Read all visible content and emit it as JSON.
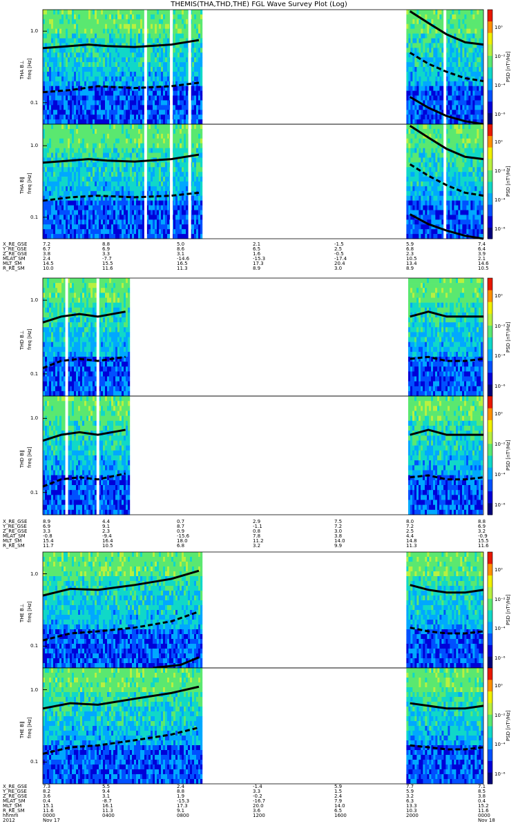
{
  "title": "THEMIS(THA,THD,THE) FGL Wave Survey Plot (Log)",
  "freq_label": "freq [Hz]",
  "psd_label": "PSD [nT²/Hz]",
  "colorbar_ticks": [
    "10⁰",
    "10⁻²",
    "10⁻⁴",
    "10⁻⁶"
  ],
  "colors": {
    "low": "#0033ff",
    "mid": "#22c8a0",
    "high": "#e8e000",
    "peak": "#d42000",
    "gap": "#ffffff"
  },
  "chart_data": [
    {
      "type": "heatmap",
      "panel": "THA B⊥",
      "ylabel": "THA B⊥",
      "yscale": "log",
      "ylim": [
        0.05,
        2.0
      ],
      "ytick_labels": [
        "1.0",
        "0.1"
      ],
      "xlim": [
        0,
        24
      ],
      "data_segments_hours": [
        [
          0,
          8.7
        ],
        [
          19.8,
          24
        ]
      ],
      "gaps_hours": [
        5.6,
        7.0,
        8.0,
        21.9
      ],
      "lines": [
        {
          "style": "solid",
          "x": [
            0,
            1.5,
            2.5,
            3.5,
            5,
            7,
            8.5
          ],
          "y": [
            0.58,
            0.62,
            0.65,
            0.62,
            0.6,
            0.65,
            0.75
          ]
        },
        {
          "style": "dashed",
          "x": [
            0,
            1.5,
            3,
            5,
            7,
            8.5
          ],
          "y": [
            0.14,
            0.15,
            0.17,
            0.16,
            0.17,
            0.19
          ]
        },
        {
          "style": "solid",
          "x": [
            20,
            21,
            22,
            23,
            24
          ],
          "y": [
            1.9,
            1.3,
            0.9,
            0.7,
            0.65
          ]
        },
        {
          "style": "dashed",
          "x": [
            20,
            21,
            22,
            23,
            24
          ],
          "y": [
            0.5,
            0.35,
            0.27,
            0.22,
            0.2
          ]
        },
        {
          "style": "solid",
          "x": [
            20,
            21,
            22,
            23,
            24
          ],
          "y": [
            0.12,
            0.085,
            0.065,
            0.055,
            0.05
          ]
        }
      ]
    },
    {
      "type": "heatmap",
      "panel": "THA B∥",
      "ylabel": "THA B∥",
      "yscale": "log",
      "ylim": [
        0.05,
        2.0
      ],
      "ytick_labels": [
        "1.0",
        "0.1"
      ],
      "xlim": [
        0,
        24
      ],
      "data_segments_hours": [
        [
          0,
          8.7
        ],
        [
          19.8,
          24
        ]
      ],
      "gaps_hours": [
        5.6,
        7.0,
        8.0,
        21.9
      ],
      "lines": [
        {
          "style": "solid",
          "x": [
            0,
            1.5,
            2.5,
            3.5,
            5,
            7,
            8.5
          ],
          "y": [
            0.58,
            0.62,
            0.65,
            0.62,
            0.6,
            0.65,
            0.75
          ]
        },
        {
          "style": "dashed",
          "x": [
            0,
            1.5,
            3,
            5,
            7,
            8.5
          ],
          "y": [
            0.17,
            0.19,
            0.2,
            0.19,
            0.2,
            0.22
          ]
        },
        {
          "style": "solid",
          "x": [
            20,
            21,
            22,
            23,
            24
          ],
          "y": [
            1.9,
            1.3,
            0.9,
            0.7,
            0.65
          ]
        },
        {
          "style": "dashed",
          "x": [
            20,
            21,
            22,
            23,
            24
          ],
          "y": [
            0.55,
            0.38,
            0.28,
            0.22,
            0.2
          ]
        },
        {
          "style": "solid",
          "x": [
            20,
            21,
            22,
            23,
            24
          ],
          "y": [
            0.11,
            0.08,
            0.065,
            0.055,
            0.05
          ]
        }
      ]
    },
    {
      "type": "heatmap",
      "panel": "THD B⊥",
      "ylabel": "THD B⊥",
      "yscale": "log",
      "ylim": [
        0.05,
        2.0
      ],
      "ytick_labels": [
        "1.0",
        "0.1"
      ],
      "xlim": [
        0,
        24
      ],
      "data_segments_hours": [
        [
          0,
          4.7
        ],
        [
          19.9,
          24
        ]
      ],
      "gaps_hours": [
        1.3,
        3.0
      ],
      "lines": [
        {
          "style": "solid",
          "x": [
            0,
            1,
            2,
            3,
            4.5
          ],
          "y": [
            0.5,
            0.6,
            0.65,
            0.6,
            0.7
          ]
        },
        {
          "style": "dashed",
          "x": [
            0,
            1,
            2,
            3,
            4.5
          ],
          "y": [
            0.12,
            0.15,
            0.16,
            0.15,
            0.17
          ]
        },
        {
          "style": "solid",
          "x": [
            20,
            21,
            22,
            23,
            24
          ],
          "y": [
            0.6,
            0.7,
            0.6,
            0.6,
            0.6
          ]
        },
        {
          "style": "dashed",
          "x": [
            20,
            21,
            22,
            23,
            24
          ],
          "y": [
            0.16,
            0.17,
            0.15,
            0.15,
            0.16
          ]
        }
      ]
    },
    {
      "type": "heatmap",
      "panel": "THD B∥",
      "ylabel": "THD B∥",
      "yscale": "log",
      "ylim": [
        0.05,
        2.0
      ],
      "ytick_labels": [
        "1.0",
        "0.1"
      ],
      "xlim": [
        0,
        24
      ],
      "data_segments_hours": [
        [
          0,
          4.7
        ],
        [
          19.9,
          24
        ]
      ],
      "gaps_hours": [
        1.3,
        3.0
      ],
      "lines": [
        {
          "style": "solid",
          "x": [
            0,
            1,
            2,
            3,
            4.5
          ],
          "y": [
            0.5,
            0.6,
            0.65,
            0.6,
            0.7
          ]
        },
        {
          "style": "dashed",
          "x": [
            0,
            1,
            2,
            3,
            4.5
          ],
          "y": [
            0.12,
            0.15,
            0.16,
            0.15,
            0.18
          ]
        },
        {
          "style": "solid",
          "x": [
            20,
            21,
            22,
            23,
            24
          ],
          "y": [
            0.6,
            0.7,
            0.6,
            0.6,
            0.6
          ]
        },
        {
          "style": "dashed",
          "x": [
            20,
            21,
            22,
            23,
            24
          ],
          "y": [
            0.16,
            0.17,
            0.15,
            0.15,
            0.16
          ]
        }
      ]
    },
    {
      "type": "heatmap",
      "panel": "THE B⊥",
      "ylabel": "THE B⊥",
      "yscale": "log",
      "ylim": [
        0.05,
        2.0
      ],
      "ytick_labels": [
        "1.0",
        "0.1"
      ],
      "xlim": [
        0,
        24
      ],
      "data_segments_hours": [
        [
          0,
          8.7
        ],
        [
          19.8,
          24
        ]
      ],
      "gaps_hours": [],
      "lines": [
        {
          "style": "solid",
          "x": [
            0,
            1.5,
            3,
            5,
            7,
            8.5
          ],
          "y": [
            0.5,
            0.62,
            0.6,
            0.7,
            0.85,
            1.1
          ]
        },
        {
          "style": "dashed",
          "x": [
            0,
            1.5,
            3,
            5,
            7,
            8.5
          ],
          "y": [
            0.12,
            0.15,
            0.16,
            0.18,
            0.22,
            0.3
          ]
        },
        {
          "style": "solid",
          "x": [
            6,
            7.5,
            8.5
          ],
          "y": [
            0.05,
            0.055,
            0.07
          ]
        },
        {
          "style": "solid",
          "x": [
            20,
            21,
            22,
            23,
            24
          ],
          "y": [
            0.7,
            0.6,
            0.55,
            0.55,
            0.6
          ]
        },
        {
          "style": "dashed",
          "x": [
            20,
            21,
            22,
            23,
            24
          ],
          "y": [
            0.18,
            0.16,
            0.15,
            0.15,
            0.16
          ]
        }
      ]
    },
    {
      "type": "heatmap",
      "panel": "THE B∥",
      "ylabel": "THE B∥",
      "yscale": "log",
      "ylim": [
        0.05,
        2.0
      ],
      "ytick_labels": [
        "1.0",
        "0.1"
      ],
      "xlim": [
        0,
        24
      ],
      "data_segments_hours": [
        [
          0,
          8.7
        ],
        [
          19.8,
          24
        ]
      ],
      "gaps_hours": [],
      "lines": [
        {
          "style": "solid",
          "x": [
            0,
            1.5,
            3,
            5,
            7,
            8.5
          ],
          "y": [
            0.55,
            0.65,
            0.62,
            0.75,
            0.9,
            1.1
          ]
        },
        {
          "style": "dashed",
          "x": [
            0,
            1.5,
            3,
            5,
            7,
            8.5
          ],
          "y": [
            0.13,
            0.16,
            0.17,
            0.2,
            0.24,
            0.3
          ]
        },
        {
          "style": "solid",
          "x": [
            20,
            21,
            22,
            23,
            24
          ],
          "y": [
            0.65,
            0.6,
            0.55,
            0.55,
            0.6
          ]
        },
        {
          "style": "dashed",
          "x": [
            20,
            21,
            22,
            23,
            24
          ],
          "y": [
            0.17,
            0.16,
            0.15,
            0.15,
            0.16
          ]
        }
      ]
    }
  ],
  "ephemeris": [
    {
      "rows": [
        {
          "label": "X_RE_GSE",
          "values": [
            "7.2",
            "8.8",
            "5.0",
            "2.1",
            "-1.5",
            "5.9",
            "7.4"
          ]
        },
        {
          "label": "Y_RE_GSE",
          "values": [
            "6.7",
            "6.9",
            "8.6",
            "6.5",
            "2.5",
            "6.8",
            "6.4"
          ]
        },
        {
          "label": "Z_RE_GSE",
          "values": [
            "3.8",
            "3.3",
            "3.1",
            "1.6",
            "-0.5",
            "2.3",
            "3.9"
          ]
        },
        {
          "label": "MLAT_SM",
          "values": [
            "2.4",
            "-7.7",
            "-14.6",
            "-15.3",
            "-17.4",
            "10.5",
            "2.1"
          ]
        },
        {
          "label": "MLT_SM",
          "values": [
            "14.5",
            "15.5",
            "16.5",
            "17.3",
            "20.4",
            "13.4",
            "14.6"
          ]
        },
        {
          "label": "R_RE_SM",
          "values": [
            "10.0",
            "11.6",
            "11.3",
            "8.9",
            "3.0",
            "8.9",
            "10.5"
          ]
        }
      ]
    },
    {
      "rows": [
        {
          "label": "X_RE_GSE",
          "values": [
            "8.9",
            "4.4",
            "0.7",
            "2.9",
            "7.5",
            "8.0",
            "8.8"
          ]
        },
        {
          "label": "Y_RE_GSE",
          "values": [
            "6.9",
            "9.1",
            "8.7",
            "-1.1",
            "7.2",
            "7.2",
            "6.9"
          ]
        },
        {
          "label": "Z_RE_GSE",
          "values": [
            "3.3",
            "2.3",
            "0.9",
            "0.8",
            "3.0",
            "2.5",
            "3.2"
          ]
        },
        {
          "label": "MLAT_SM",
          "values": [
            "-0.8",
            "-9.4",
            "-15.6",
            "7.8",
            "3.8",
            "4.4",
            "-0.9"
          ]
        },
        {
          "label": "MLT_SM",
          "values": [
            "15.4",
            "16.4",
            "18.0",
            "11.2",
            "14.0",
            "14.8",
            "15.5"
          ]
        },
        {
          "label": "R_RE_SM",
          "values": [
            "11.7",
            "10.5",
            "6.8",
            "3.2",
            "9.9",
            "11.3",
            "11.6"
          ]
        }
      ]
    },
    {
      "rows": [
        {
          "label": "X_RE_GSE",
          "values": [
            "7.3",
            "5.5",
            "2.4",
            "-1.4",
            "5.9",
            "7.7",
            "7.1"
          ]
        },
        {
          "label": "Y_RE_GSE",
          "values": [
            "8.2",
            "9.4",
            "8.8",
            "3.3",
            "1.5",
            "5.9",
            "8.5"
          ]
        },
        {
          "label": "Z_RE_GSE",
          "values": [
            "3.6",
            "3.1",
            "1.9",
            "-0.2",
            "2.4",
            "3.2",
            "3.8"
          ]
        },
        {
          "label": "MLAT_SM",
          "values": [
            "0.4",
            "-8.7",
            "-15.3",
            "-16.7",
            "7.9",
            "6.3",
            "0.4"
          ]
        },
        {
          "label": "MLT_SM",
          "values": [
            "15.1",
            "16.1",
            "17.3",
            "20.0",
            "14.0",
            "13.3",
            "15.2"
          ]
        },
        {
          "label": "R_RE_SM",
          "values": [
            "11.6",
            "11.3",
            "9.1",
            "3.6",
            "6.5",
            "10.3",
            "11.6"
          ]
        },
        {
          "label": "hhmm",
          "values": [
            "0000",
            "0400",
            "0800",
            "1200",
            "1600",
            "2000",
            "0000"
          ]
        },
        {
          "label": "2012",
          "values": [
            "Nov 17",
            "",
            "",
            "",
            "",
            "",
            "Nov 18"
          ]
        }
      ]
    }
  ]
}
